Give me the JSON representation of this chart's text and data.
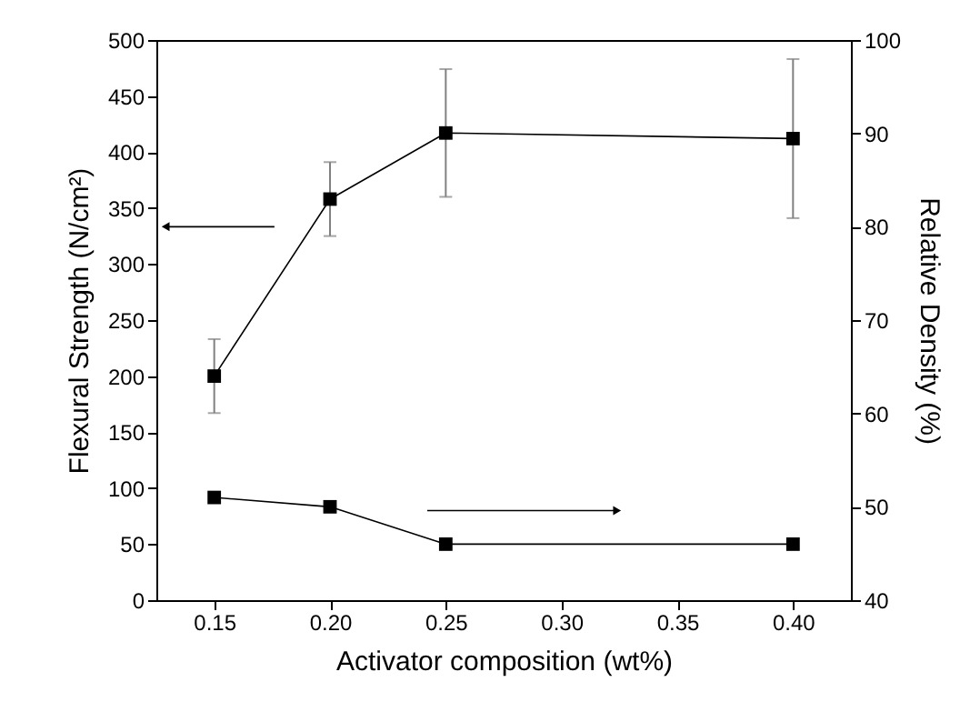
{
  "chart_data": {
    "type": "line",
    "xlabel": "Activator composition (wt%)",
    "ylabel": "Flexural Strength (N/cm²)",
    "y2label": "Relative Density (%)",
    "x": [
      0.15,
      0.2,
      0.25,
      0.4
    ],
    "xlim": [
      0.125,
      0.425
    ],
    "xticks": [
      {
        "value": 0.15,
        "label": "0.15"
      },
      {
        "value": 0.2,
        "label": "0.20"
      },
      {
        "value": 0.25,
        "label": "0.25"
      },
      {
        "value": 0.3,
        "label": "0.30"
      },
      {
        "value": 0.35,
        "label": "0.35"
      },
      {
        "value": 0.4,
        "label": "0.40"
      }
    ],
    "ylim": [
      0,
      500
    ],
    "yticks": [
      0,
      50,
      100,
      150,
      200,
      250,
      300,
      350,
      400,
      450,
      500
    ],
    "y2lim": [
      40,
      100
    ],
    "y2ticks": [
      40,
      50,
      60,
      70,
      80,
      90,
      100
    ],
    "marker": "square",
    "line_style": "solid",
    "grid": false,
    "series": [
      {
        "color": "#000000",
        "values": [
          200,
          358,
          417,
          412
        ],
        "errors": [
          33,
          33,
          57,
          71
        ]
      },
      {
        "color": "#000000",
        "values": [
          51,
          50,
          46,
          46
        ],
        "axis": "y2"
      }
    ]
  }
}
